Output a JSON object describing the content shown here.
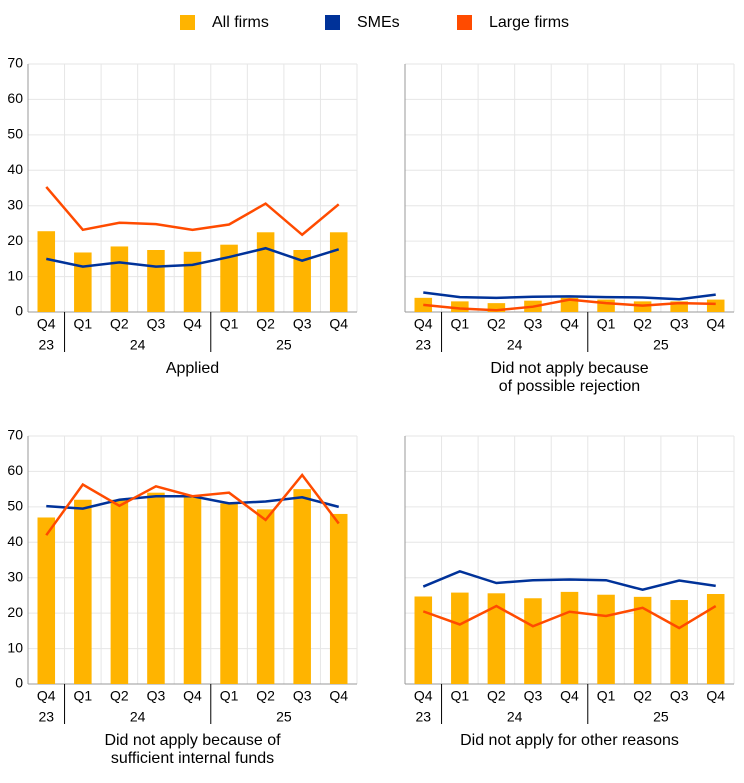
{
  "legend_position": "top",
  "chart_data": [
    {
      "type": "combo",
      "title": [
        "Applied"
      ],
      "categories": [
        "Q4",
        "Q1",
        "Q2",
        "Q3",
        "Q4",
        "Q1",
        "Q2",
        "Q3",
        "Q4"
      ],
      "groups": [
        "23",
        "24",
        "25"
      ],
      "ylim": [
        0,
        70
      ],
      "yticks": [
        0,
        10,
        20,
        30,
        40,
        50,
        60,
        70
      ],
      "grid": true,
      "series": [
        {
          "name": "All firms",
          "type": "bar",
          "color": "#FFB400",
          "values": [
            22.8,
            16.8,
            18.5,
            17.5,
            17.0,
            19.0,
            22.5,
            17.5,
            22.5
          ]
        },
        {
          "name": "SMEs",
          "type": "line",
          "color": "#003299",
          "values": [
            15.0,
            12.8,
            14.0,
            12.8,
            13.3,
            15.5,
            18.0,
            14.5,
            17.7
          ]
        },
        {
          "name": "Large firms",
          "type": "line",
          "color": "#FF4B00",
          "values": [
            35.3,
            23.2,
            25.2,
            24.8,
            23.2,
            24.7,
            30.6,
            21.8,
            30.4
          ]
        }
      ]
    },
    {
      "type": "combo",
      "title": [
        "Did not apply because",
        "of possible rejection"
      ],
      "categories": [
        "Q4",
        "Q1",
        "Q2",
        "Q3",
        "Q4",
        "Q1",
        "Q2",
        "Q3",
        "Q4"
      ],
      "groups": [
        "23",
        "24",
        "25"
      ],
      "ylim": [
        0,
        70
      ],
      "yticks": [
        0,
        10,
        20,
        30,
        40,
        50,
        60,
        70
      ],
      "grid": true,
      "series": [
        {
          "name": "All firms",
          "type": "bar",
          "color": "#FFB400",
          "values": [
            4.0,
            3.0,
            2.5,
            3.2,
            4.0,
            3.5,
            3.0,
            3.0,
            3.5
          ]
        },
        {
          "name": "SMEs",
          "type": "line",
          "color": "#003299",
          "values": [
            5.5,
            4.2,
            4.0,
            4.3,
            4.4,
            4.2,
            4.1,
            3.6,
            4.9
          ]
        },
        {
          "name": "Large firms",
          "type": "line",
          "color": "#FF4B00",
          "values": [
            2.0,
            1.0,
            0.5,
            1.5,
            3.5,
            2.5,
            1.8,
            2.5,
            2.3
          ]
        }
      ]
    },
    {
      "type": "combo",
      "title": [
        "Did not apply because of",
        "sufficient internal funds"
      ],
      "categories": [
        "Q4",
        "Q1",
        "Q2",
        "Q3",
        "Q4",
        "Q1",
        "Q2",
        "Q3",
        "Q4"
      ],
      "groups": [
        "23",
        "24",
        "25"
      ],
      "ylim": [
        0,
        70
      ],
      "yticks": [
        0,
        10,
        20,
        30,
        40,
        50,
        60,
        70
      ],
      "grid": true,
      "series": [
        {
          "name": "All firms",
          "type": "bar",
          "color": "#FFB400",
          "values": [
            47.0,
            52.0,
            52.0,
            54.0,
            53.0,
            51.0,
            49.3,
            55.0,
            48.0
          ]
        },
        {
          "name": "SMEs",
          "type": "line",
          "color": "#003299",
          "values": [
            50.2,
            49.5,
            52.0,
            53.0,
            53.0,
            51.0,
            51.5,
            52.7,
            50.0
          ]
        },
        {
          "name": "Large firms",
          "type": "line",
          "color": "#FF4B00",
          "values": [
            42.0,
            56.3,
            50.3,
            55.8,
            53.0,
            54.0,
            46.3,
            59.0,
            45.3
          ]
        }
      ]
    },
    {
      "type": "combo",
      "title": [
        "Did not apply for other reasons"
      ],
      "categories": [
        "Q4",
        "Q1",
        "Q2",
        "Q3",
        "Q4",
        "Q1",
        "Q2",
        "Q3",
        "Q4"
      ],
      "groups": [
        "23",
        "24",
        "25"
      ],
      "ylim": [
        0,
        70
      ],
      "yticks": [
        0,
        10,
        20,
        30,
        40,
        50,
        60,
        70
      ],
      "grid": true,
      "series": [
        {
          "name": "All firms",
          "type": "bar",
          "color": "#FFB400",
          "values": [
            24.7,
            25.8,
            25.6,
            24.2,
            26.0,
            25.2,
            24.6,
            23.7,
            25.4
          ]
        },
        {
          "name": "SMEs",
          "type": "line",
          "color": "#003299",
          "values": [
            27.5,
            31.8,
            28.5,
            29.3,
            29.5,
            29.3,
            26.6,
            29.2,
            27.7
          ]
        },
        {
          "name": "Large firms",
          "type": "line",
          "color": "#FF4B00",
          "values": [
            20.5,
            16.8,
            22.0,
            16.3,
            20.4,
            19.2,
            21.5,
            15.8,
            22.0
          ]
        }
      ]
    }
  ]
}
